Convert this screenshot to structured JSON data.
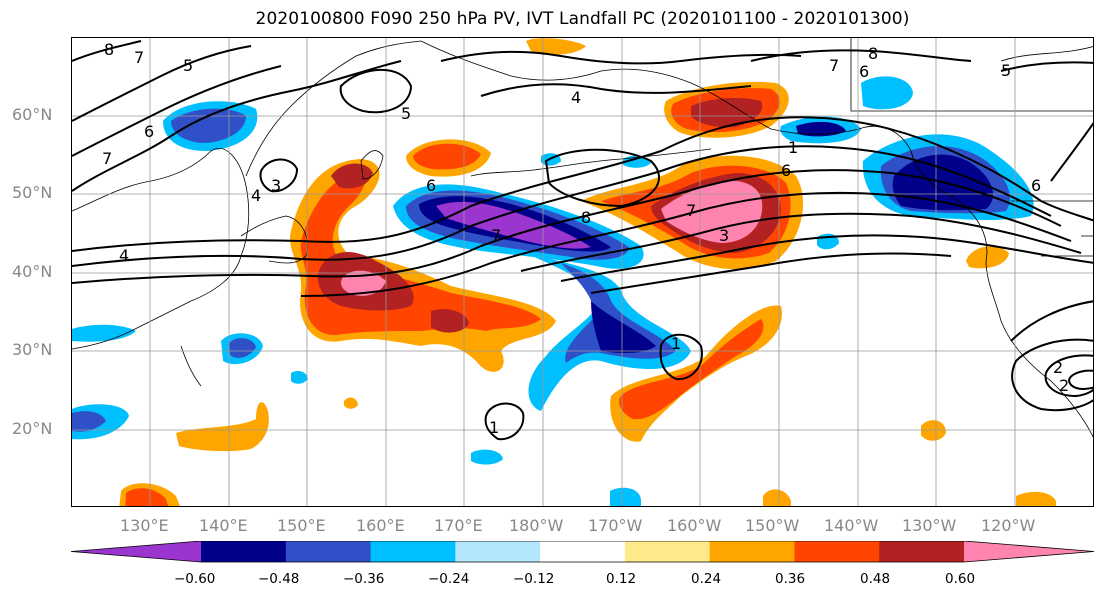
{
  "title": "2020100800 F090 250 hPa PV, IVT Landfall PC (2020101100 - 2020101300)",
  "lat_labels": [
    "60°N",
    "50°N",
    "40°N",
    "30°N",
    "20°N"
  ],
  "lon_labels": [
    "130°E",
    "140°E",
    "150°E",
    "160°E",
    "170°E",
    "180°W",
    "170°W",
    "160°W",
    "150°W",
    "140°W",
    "130°W",
    "120°W"
  ],
  "contour_labels": [
    "8",
    "7",
    "5",
    "6",
    "7",
    "4",
    "5",
    "4",
    "8",
    "6",
    "7",
    "8",
    "5",
    "7",
    "4",
    "3",
    "6",
    "3",
    "7",
    "6",
    "1",
    "2",
    "1",
    "1",
    "2",
    "6"
  ],
  "colorbar": {
    "colors": [
      "#9a35d0",
      "#00008b",
      "#3050c8",
      "#00bfff",
      "#b3e5fc",
      "#ffffff",
      "#ffe98a",
      "#ffa500",
      "#ff4500",
      "#b22222",
      "#ff85b0"
    ],
    "ticks": [
      "−0.60",
      "−0.48",
      "−0.36",
      "−0.24",
      "−0.12",
      "0.12",
      "0.24",
      "0.36",
      "0.48",
      "0.60"
    ]
  }
}
